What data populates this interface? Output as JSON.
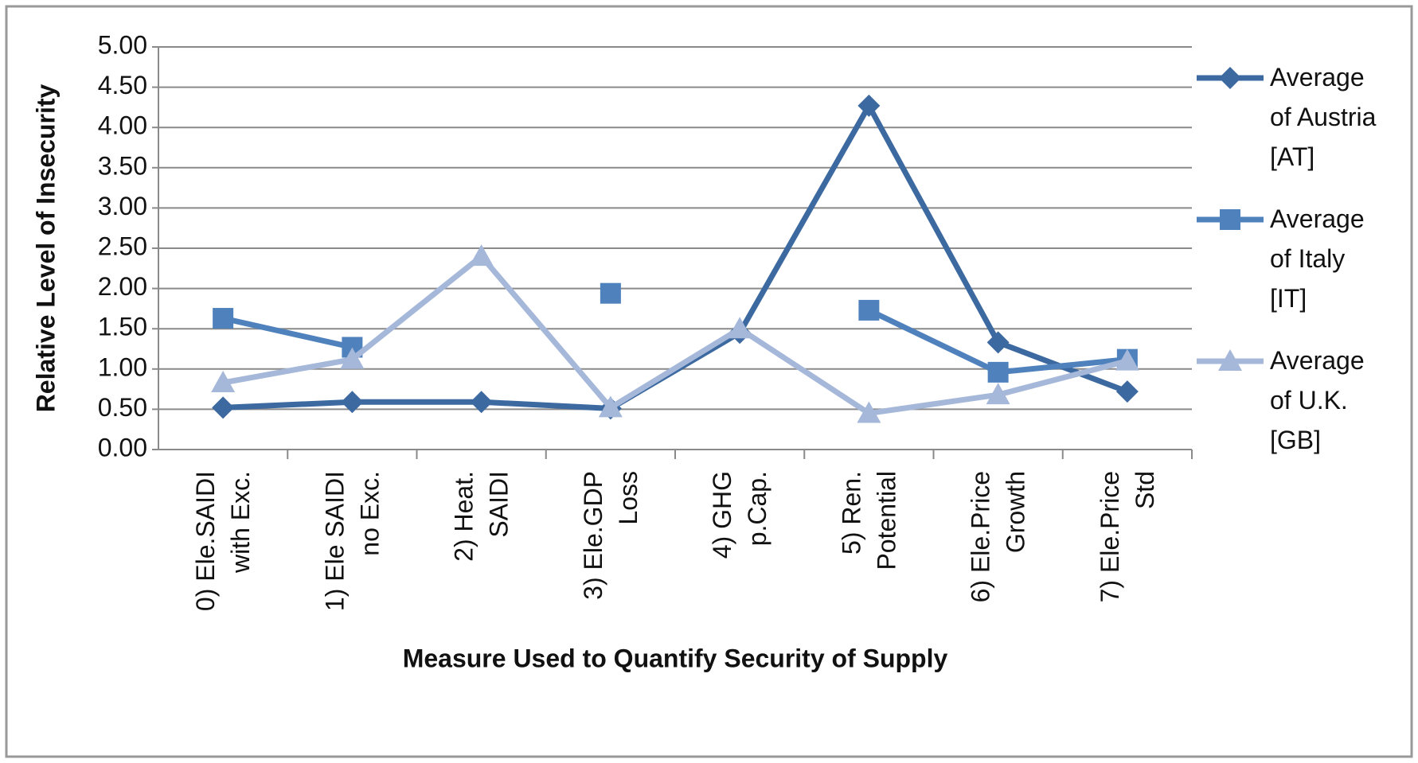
{
  "chart_data": {
    "type": "line",
    "y_label": "Relative Level of Insecurity",
    "x_label": "Measure Used to Quantify Security of Supply",
    "categories": [
      "0) Ele.SAIDI\nwith Exc.",
      "1) Ele SAIDI\nno Exc.",
      "2) Heat.\nSAIDI",
      "3) Ele.GDP\nLoss",
      "4) GHG\np.Cap.",
      "5) Ren.\nPotential",
      "6) Ele.Price\nGrowth",
      "7) Ele.Price\nStd"
    ],
    "series": [
      {
        "name": "Average of Austria [AT]",
        "color": "#3d69a1",
        "marker": "diamond",
        "values": [
          0.52,
          0.59,
          0.59,
          0.51,
          1.45,
          4.27,
          1.33,
          0.72
        ]
      },
      {
        "name": "Average of Italy [IT]",
        "color": "#4f81bd",
        "marker": "square",
        "values": [
          1.63,
          1.27,
          null,
          1.94,
          null,
          1.73,
          0.96,
          1.12
        ]
      },
      {
        "name": "Average of U.K. [GB]",
        "color": "#a5b8d9",
        "marker": "triangle",
        "values": [
          0.83,
          1.12,
          2.4,
          0.52,
          1.5,
          0.45,
          0.68,
          1.1
        ]
      }
    ],
    "ylim": [
      0,
      5
    ],
    "yticks": [
      {
        "value": 0,
        "label": "0.00"
      },
      {
        "value": 0.5,
        "label": "0.50"
      },
      {
        "value": 1,
        "label": "1.00"
      },
      {
        "value": 1.5,
        "label": "1.50"
      },
      {
        "value": 2,
        "label": "2.00"
      },
      {
        "value": 2.5,
        "label": "2.50"
      },
      {
        "value": 3,
        "label": "3.00"
      },
      {
        "value": 3.5,
        "label": "3.50"
      },
      {
        "value": 4,
        "label": "4.00"
      },
      {
        "value": 4.5,
        "label": "4.50"
      },
      {
        "value": 5,
        "label": "5.00"
      }
    ],
    "grid": true,
    "legend": "right"
  }
}
